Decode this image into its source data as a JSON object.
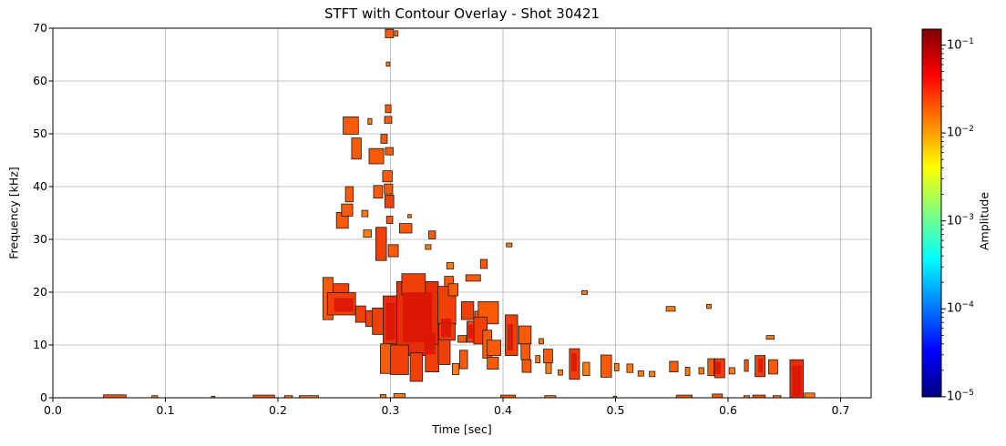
{
  "chart_data": {
    "type": "contour",
    "title": "STFT with Contour Overlay - Shot 30421",
    "xlabel": "Time [sec]",
    "ylabel": "Frequency [kHz]",
    "xlim": [
      0.0,
      0.727
    ],
    "ylim": [
      0,
      70
    ],
    "xticks": [
      "0.0",
      "0.1",
      "0.2",
      "0.3",
      "0.4",
      "0.5",
      "0.6",
      "0.7"
    ],
    "yticks": [
      "0",
      "10",
      "20",
      "30",
      "40",
      "50",
      "60",
      "70"
    ],
    "grid": true,
    "grid_color": "#b0b0b0",
    "outline_color": "#1b1b1b",
    "palette": [
      "#ff9833",
      "#ff7b14",
      "#fb5a08",
      "#f04008",
      "#e62e0a"
    ],
    "core_color": "#dc1505",
    "colorbar": {
      "label": "Amplitude",
      "scale": "log",
      "colormap": "jet",
      "tick_exponents": [
        -1,
        -2,
        -3,
        -4,
        -5
      ],
      "vmin": 1e-05,
      "vmax": 0.155,
      "gradient_stops": [
        [
          "0",
          "#000080"
        ],
        [
          "0.125",
          "#0000ff"
        ],
        [
          "0.375",
          "#00ffff"
        ],
        [
          "0.625",
          "#ffff00"
        ],
        [
          "0.875",
          "#ff0000"
        ],
        [
          "1",
          "#800000"
        ]
      ]
    },
    "patches_format": "[time_sec, freq_khz, width_sec, height_khz, palette_index]",
    "patches": [
      [
        0.2955,
        68.2,
        0.0073,
        1.6,
        2
      ],
      [
        0.3037,
        68.5,
        0.003,
        1.0,
        1
      ],
      [
        0.2963,
        62.8,
        0.0032,
        0.8,
        1
      ],
      [
        0.2955,
        54.0,
        0.005,
        1.5,
        2
      ],
      [
        0.2947,
        52.0,
        0.0065,
        1.3,
        2
      ],
      [
        0.28,
        51.8,
        0.0035,
        1.1,
        1
      ],
      [
        0.258,
        49.9,
        0.0135,
        3.3,
        2
      ],
      [
        0.2915,
        48.2,
        0.0057,
        1.7,
        2
      ],
      [
        0.2955,
        46.0,
        0.007,
        1.4,
        2
      ],
      [
        0.2655,
        45.2,
        0.0085,
        4.0,
        2
      ],
      [
        0.281,
        44.3,
        0.013,
        2.9,
        2
      ],
      [
        0.293,
        40.9,
        0.0085,
        2.1,
        2
      ],
      [
        0.2945,
        38.6,
        0.0075,
        1.9,
        2
      ],
      [
        0.285,
        37.8,
        0.008,
        2.4,
        2
      ],
      [
        0.26,
        37.1,
        0.007,
        2.9,
        2
      ],
      [
        0.295,
        36.0,
        0.008,
        2.4,
        3
      ],
      [
        0.2965,
        33.0,
        0.0055,
        1.4,
        2
      ],
      [
        0.252,
        32.1,
        0.0105,
        3.0,
        2
      ],
      [
        0.2565,
        34.4,
        0.01,
        2.3,
        2
      ],
      [
        0.2745,
        34.3,
        0.0055,
        1.2,
        1
      ],
      [
        0.276,
        30.4,
        0.007,
        1.4,
        1
      ],
      [
        0.287,
        26.0,
        0.0095,
        6.3,
        3
      ],
      [
        0.298,
        26.7,
        0.009,
        2.3,
        2
      ],
      [
        0.308,
        31.2,
        0.011,
        1.8,
        2
      ],
      [
        0.3155,
        34.1,
        0.003,
        0.6,
        1
      ],
      [
        0.334,
        30.1,
        0.006,
        1.5,
        2
      ],
      [
        0.331,
        28.1,
        0.005,
        0.9,
        1
      ],
      [
        0.35,
        24.4,
        0.006,
        1.2,
        1
      ],
      [
        0.348,
        20.8,
        0.008,
        2.2,
        2
      ],
      [
        0.38,
        24.5,
        0.006,
        1.7,
        2
      ],
      [
        0.367,
        22.1,
        0.013,
        1.2,
        2
      ],
      [
        0.403,
        28.6,
        0.005,
        0.7,
        1
      ],
      [
        0.47,
        19.6,
        0.005,
        0.7,
        1
      ],
      [
        0.24,
        14.8,
        0.009,
        8.0,
        2
      ],
      [
        0.249,
        16.0,
        0.014,
        5.6,
        3
      ],
      [
        0.244,
        15.7,
        0.025,
        4.2,
        3
      ],
      [
        0.269,
        14.3,
        0.009,
        3.1,
        3
      ],
      [
        0.278,
        13.5,
        0.013,
        3.0,
        3
      ],
      [
        0.284,
        12.0,
        0.01,
        5.0,
        3
      ],
      [
        0.2935,
        9.8,
        0.0125,
        9.5,
        4
      ],
      [
        0.3055,
        8.0,
        0.037,
        14.0,
        4
      ],
      [
        0.31,
        19.5,
        0.021,
        4.0,
        3
      ],
      [
        0.342,
        13.9,
        0.016,
        7.2,
        3
      ],
      [
        0.3515,
        19.3,
        0.0085,
        2.3,
        2
      ],
      [
        0.343,
        10.9,
        0.0145,
        3.2,
        3
      ],
      [
        0.36,
        10.5,
        0.0075,
        1.3,
        2
      ],
      [
        0.363,
        14.8,
        0.011,
        3.4,
        3
      ],
      [
        0.368,
        10.5,
        0.014,
        4.0,
        3
      ],
      [
        0.375,
        14.8,
        0.007,
        1.6,
        2
      ],
      [
        0.378,
        14.0,
        0.018,
        4.2,
        2
      ],
      [
        0.374,
        10.2,
        0.012,
        5.1,
        3
      ],
      [
        0.382,
        7.5,
        0.008,
        5.3,
        2
      ],
      [
        0.386,
        8.0,
        0.012,
        2.9,
        2
      ],
      [
        0.386,
        5.4,
        0.01,
        2.3,
        2
      ],
      [
        0.291,
        4.6,
        0.013,
        5.6,
        2
      ],
      [
        0.3,
        4.4,
        0.016,
        5.6,
        3
      ],
      [
        0.3175,
        3.1,
        0.011,
        5.4,
        3
      ],
      [
        0.331,
        4.9,
        0.012,
        5.2,
        3
      ],
      [
        0.3425,
        6.3,
        0.0105,
        4.7,
        3
      ],
      [
        0.355,
        4.4,
        0.006,
        2.1,
        1
      ],
      [
        0.3615,
        5.5,
        0.007,
        3.5,
        2
      ],
      [
        0.402,
        8.0,
        0.011,
        7.7,
        3
      ],
      [
        0.414,
        10.2,
        0.011,
        3.4,
        2
      ],
      [
        0.416,
        7.2,
        0.008,
        3.0,
        2
      ],
      [
        0.417,
        4.8,
        0.008,
        2.4,
        2
      ],
      [
        0.432,
        10.2,
        0.004,
        1.0,
        1
      ],
      [
        0.429,
        6.6,
        0.004,
        1.4,
        1
      ],
      [
        0.436,
        6.6,
        0.008,
        2.6,
        2
      ],
      [
        0.438,
        4.6,
        0.005,
        2.0,
        1
      ],
      [
        0.449,
        4.3,
        0.004,
        1.0,
        1
      ],
      [
        0.459,
        3.5,
        0.009,
        5.8,
        3
      ],
      [
        0.471,
        4.2,
        0.006,
        2.5,
        1
      ],
      [
        0.487,
        3.9,
        0.0095,
        4.2,
        2
      ],
      [
        0.499,
        5.1,
        0.004,
        1.4,
        1
      ],
      [
        0.51,
        4.8,
        0.0055,
        1.6,
        1
      ],
      [
        0.52,
        4.1,
        0.005,
        1.0,
        1
      ],
      [
        0.53,
        4.0,
        0.005,
        1.0,
        1
      ],
      [
        0.545,
        16.4,
        0.008,
        0.9,
        1
      ],
      [
        0.581,
        16.9,
        0.004,
        0.8,
        1
      ],
      [
        0.548,
        4.9,
        0.0075,
        2.0,
        2
      ],
      [
        0.562,
        4.2,
        0.004,
        1.6,
        1
      ],
      [
        0.574,
        4.5,
        0.0045,
        1.2,
        1
      ],
      [
        0.582,
        4.2,
        0.0055,
        3.2,
        2
      ],
      [
        0.588,
        3.8,
        0.009,
        3.6,
        3
      ],
      [
        0.601,
        4.5,
        0.005,
        1.2,
        1
      ],
      [
        0.6145,
        5.0,
        0.0035,
        2.2,
        2
      ],
      [
        0.624,
        4.0,
        0.009,
        4.0,
        3
      ],
      [
        0.636,
        4.5,
        0.008,
        2.7,
        2
      ],
      [
        0.634,
        11.1,
        0.007,
        0.7,
        1
      ],
      [
        0.655,
        0.0,
        0.012,
        7.2,
        4
      ],
      [
        0.668,
        0.0,
        0.009,
        0.9,
        1
      ],
      [
        0.045,
        0.0,
        0.02,
        0.55,
        2
      ],
      [
        0.088,
        0.0,
        0.005,
        0.4,
        1
      ],
      [
        0.141,
        0.0,
        0.003,
        0.3,
        1
      ],
      [
        0.178,
        0.0,
        0.019,
        0.5,
        2
      ],
      [
        0.206,
        0.0,
        0.007,
        0.4,
        1
      ],
      [
        0.219,
        0.0,
        0.017,
        0.4,
        1
      ],
      [
        0.291,
        0.0,
        0.005,
        0.6,
        1
      ],
      [
        0.303,
        0.0,
        0.01,
        0.8,
        1
      ],
      [
        0.398,
        0.0,
        0.013,
        0.5,
        2
      ],
      [
        0.437,
        0.0,
        0.01,
        0.4,
        1
      ],
      [
        0.498,
        0.0,
        0.003,
        0.3,
        1
      ],
      [
        0.554,
        0.0,
        0.014,
        0.5,
        2
      ],
      [
        0.586,
        0.0,
        0.009,
        0.7,
        2
      ],
      [
        0.614,
        0.0,
        0.005,
        0.4,
        1
      ],
      [
        0.622,
        0.0,
        0.011,
        0.5,
        2
      ],
      [
        0.64,
        0.0,
        0.007,
        0.4,
        1
      ]
    ],
    "cores": [
      [
        0.25,
        16.3,
        0.017,
        2.6
      ],
      [
        0.296,
        11.0,
        0.008,
        7.0
      ],
      [
        0.311,
        10.5,
        0.026,
        9.5
      ],
      [
        0.318,
        14.5,
        0.015,
        4.5
      ],
      [
        0.33,
        8.2,
        0.01,
        4.0
      ],
      [
        0.345,
        11.5,
        0.009,
        3.5
      ],
      [
        0.369,
        11.3,
        0.006,
        2.5
      ],
      [
        0.404,
        9.0,
        0.005,
        5.0
      ],
      [
        0.461,
        5.0,
        0.0045,
        3.5
      ],
      [
        0.589,
        4.5,
        0.0045,
        2.3
      ],
      [
        0.627,
        4.8,
        0.004,
        2.6
      ],
      [
        0.657,
        0.3,
        0.008,
        5.8
      ]
    ]
  }
}
